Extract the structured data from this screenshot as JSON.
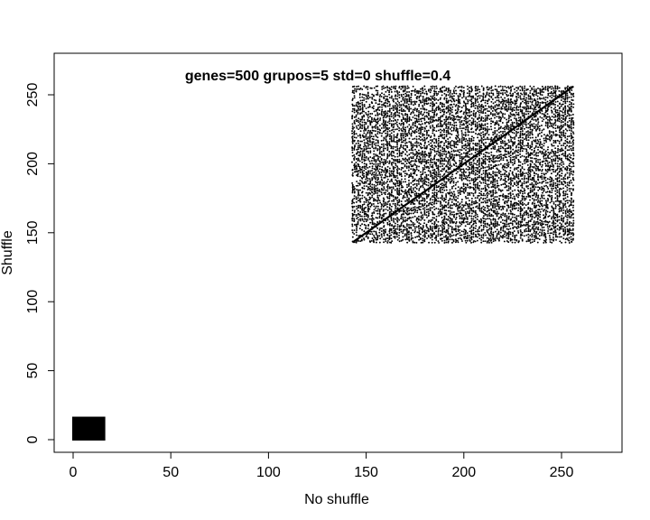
{
  "chart_data": {
    "type": "scatter",
    "title": "genes=500 grupos=5 std=0 shuffle=0.4",
    "xlabel": "No shuffle",
    "ylabel": "Shuffle",
    "xlim": [
      -10,
      280
    ],
    "ylim": [
      -10,
      280
    ],
    "xticks": [
      0,
      50,
      100,
      150,
      200,
      250
    ],
    "yticks": [
      0,
      50,
      100,
      150,
      200,
      250
    ],
    "grid": false,
    "legend": "none",
    "color": "#000000",
    "clusters": [
      {
        "x_range": [
          0,
          16
        ],
        "y_range": [
          0,
          16
        ],
        "density": "solid"
      },
      {
        "x_range": [
          143,
          256
        ],
        "y_range": [
          143,
          256
        ],
        "density": "dense-random"
      }
    ],
    "diagonal": {
      "from": [
        143,
        143
      ],
      "to": [
        256,
        256
      ]
    }
  }
}
